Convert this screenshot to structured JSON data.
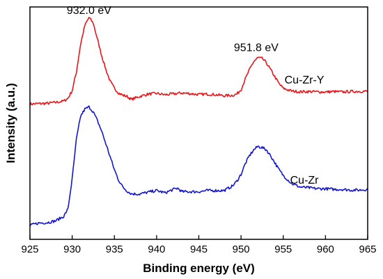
{
  "chart_data": {
    "type": "line",
    "xlabel": "Binding energy (eV)",
    "ylabel": "Intensity (a.u.)",
    "xlim": [
      925,
      965
    ],
    "ylim": [
      0,
      1
    ],
    "xticks": [
      925,
      930,
      935,
      940,
      945,
      950,
      955,
      960,
      965
    ],
    "xtick_labels": [
      "925",
      "930",
      "935",
      "940",
      "945",
      "950",
      "955",
      "960",
      "965"
    ],
    "yticks_shown": false,
    "grid": false,
    "annotations": [
      {
        "text": "932.0 eV",
        "x": 932.0,
        "y": 0.97
      },
      {
        "text": "951.8 eV",
        "x": 951.8,
        "y": 0.81
      }
    ],
    "series": [
      {
        "name": "Cu-Zr-Y",
        "color": "#e8151b",
        "x": [
          925,
          926,
          927,
          928,
          929,
          929.5,
          930,
          930.5,
          931,
          931.5,
          932,
          932.5,
          933,
          933.5,
          934,
          934.5,
          935,
          935.5,
          936,
          936.5,
          937,
          938,
          939,
          940,
          941,
          942,
          943,
          944,
          945,
          946,
          947,
          948,
          949,
          949.5,
          950,
          950.5,
          951,
          951.5,
          952,
          952.5,
          953,
          953.5,
          954,
          954.5,
          955,
          956,
          957,
          958,
          959,
          960,
          961,
          962,
          963,
          964,
          965
        ],
        "y": [
          0.582,
          0.584,
          0.585,
          0.589,
          0.595,
          0.607,
          0.64,
          0.72,
          0.84,
          0.92,
          0.955,
          0.93,
          0.86,
          0.79,
          0.73,
          0.68,
          0.65,
          0.63,
          0.62,
          0.615,
          0.602,
          0.615,
          0.625,
          0.628,
          0.622,
          0.626,
          0.63,
          0.627,
          0.623,
          0.625,
          0.622,
          0.618,
          0.62,
          0.625,
          0.645,
          0.69,
          0.73,
          0.765,
          0.782,
          0.778,
          0.76,
          0.73,
          0.7,
          0.67,
          0.65,
          0.638,
          0.635,
          0.636,
          0.635,
          0.634,
          0.636,
          0.634,
          0.636,
          0.637,
          0.637
        ]
      },
      {
        "name": "Cu-Zr",
        "color": "#1515cc",
        "x": [
          925,
          926,
          927,
          928,
          929,
          929.5,
          930,
          930.5,
          931,
          931.5,
          932,
          932.5,
          933,
          933.5,
          934,
          934.5,
          935,
          935.5,
          936,
          936.5,
          937,
          938,
          939,
          940,
          941,
          942,
          942.5,
          943,
          944,
          945,
          946,
          947,
          948,
          949,
          949.5,
          950,
          950.5,
          951,
          951.5,
          952,
          952.5,
          953,
          953.5,
          954,
          954.5,
          955,
          956,
          957,
          958,
          959,
          960,
          961,
          962,
          963,
          964,
          965
        ],
        "y": [
          0.06,
          0.07,
          0.072,
          0.079,
          0.099,
          0.13,
          0.26,
          0.43,
          0.53,
          0.56,
          0.57,
          0.548,
          0.51,
          0.465,
          0.41,
          0.355,
          0.3,
          0.255,
          0.225,
          0.208,
          0.196,
          0.195,
          0.203,
          0.21,
          0.2,
          0.215,
          0.22,
          0.205,
          0.205,
          0.205,
          0.21,
          0.21,
          0.21,
          0.23,
          0.25,
          0.28,
          0.325,
          0.36,
          0.385,
          0.4,
          0.395,
          0.385,
          0.36,
          0.33,
          0.3,
          0.275,
          0.24,
          0.225,
          0.222,
          0.218,
          0.218,
          0.215,
          0.215,
          0.212,
          0.212,
          0.215
        ]
      }
    ]
  }
}
